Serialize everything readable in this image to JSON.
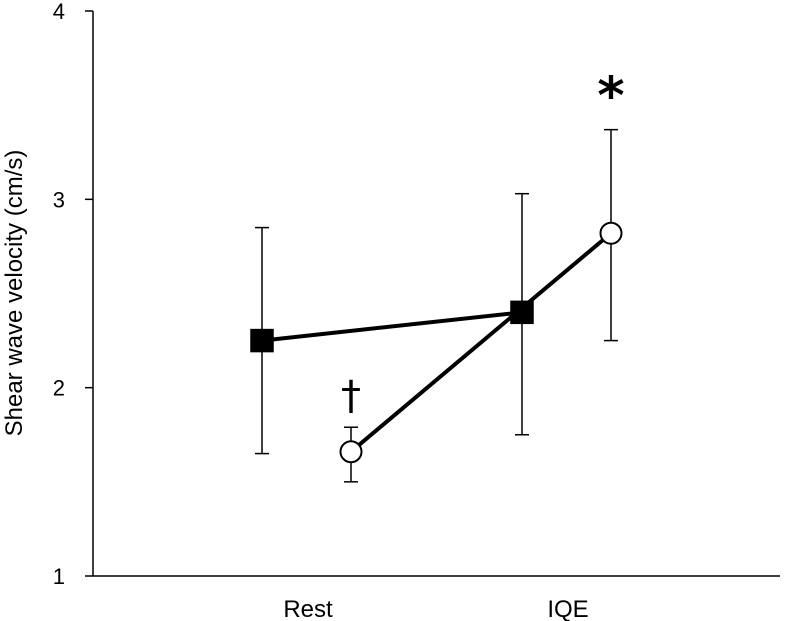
{
  "chart_data": {
    "type": "line",
    "title": "",
    "xlabel": "",
    "ylabel": "Shear wave velocity (cm/s)",
    "ylim": [
      1,
      4
    ],
    "yticks": [
      1,
      2,
      3,
      4
    ],
    "categories": [
      "Rest",
      "IQE"
    ],
    "grid": false,
    "legend": "none",
    "series": [
      {
        "name": "filled-square",
        "marker": "square",
        "fill": "#000000",
        "values": [
          2.25,
          2.4
        ],
        "err_low": [
          1.65,
          1.75
        ],
        "err_high": [
          2.85,
          3.03
        ]
      },
      {
        "name": "open-circle",
        "marker": "circle",
        "fill": "#ffffff",
        "values": [
          1.66,
          2.82
        ],
        "err_low": [
          1.5,
          2.25
        ],
        "err_high": [
          1.79,
          3.37
        ]
      }
    ],
    "annotations": [
      {
        "text": "†",
        "series": 1,
        "category": 0
      },
      {
        "text": "*",
        "series": 1,
        "category": 1
      }
    ]
  }
}
